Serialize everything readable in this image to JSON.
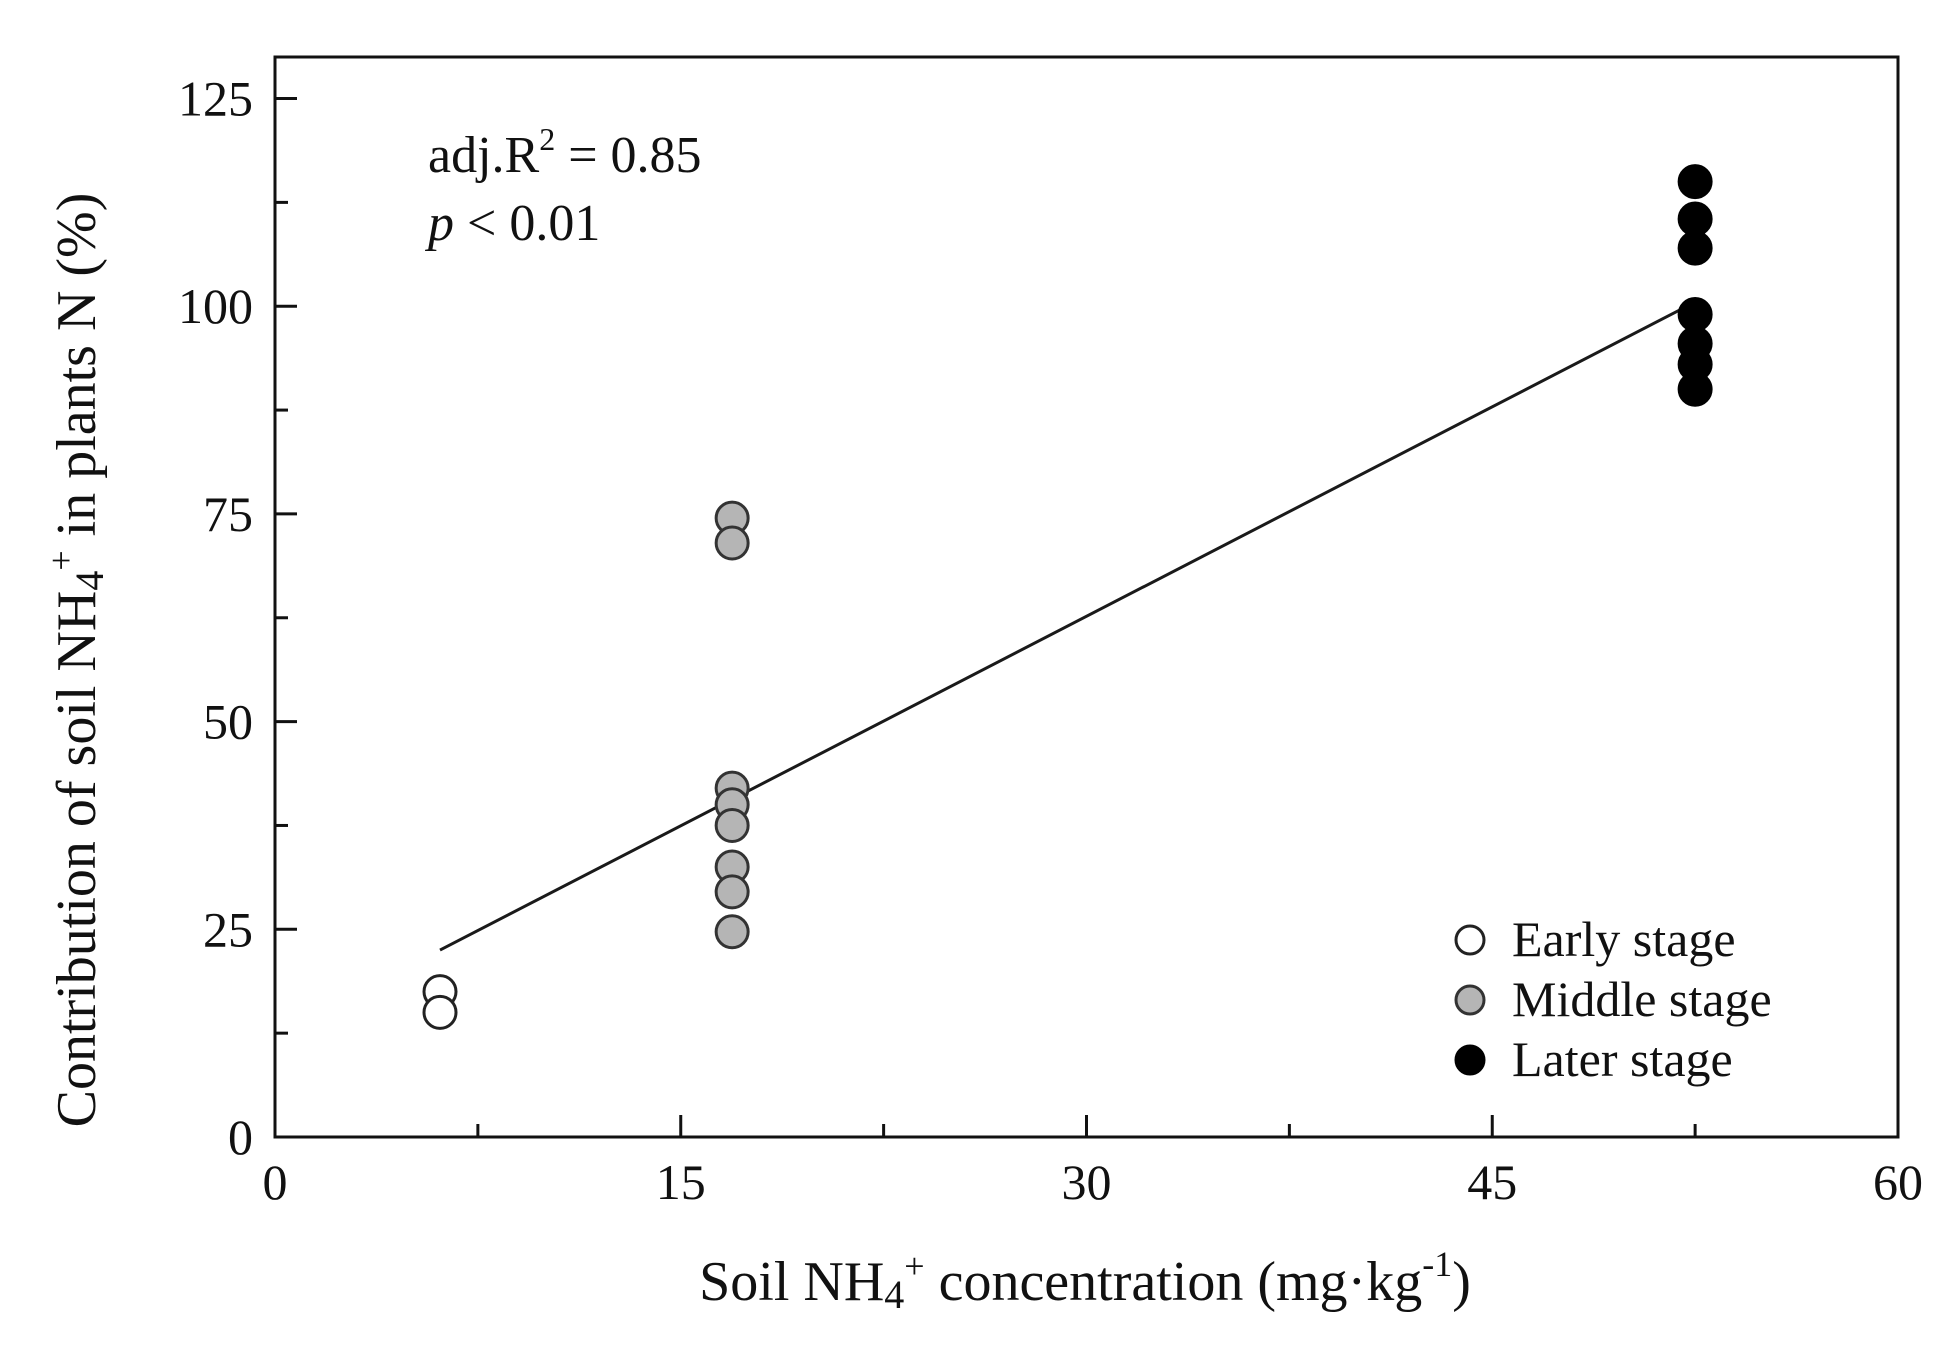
{
  "chart_data": {
    "type": "scatter",
    "xlabel": "Soil NH4+ concentration (mg·kg-1)",
    "xlabel_parts": {
      "pre": "Soil NH",
      "sub": "4",
      "sup": "+",
      "mid": " concentration (mg·kg",
      "sup2": "-1",
      "post": ")"
    },
    "ylabel": "Contribution of soil NH4+ in plants N (%)",
    "ylabel_parts": {
      "pre": "Contribution of soil NH",
      "sub": "4",
      "sup": "+",
      "post": " in plants N (%)"
    },
    "xlim": [
      0,
      60
    ],
    "ylim": [
      0,
      130
    ],
    "x_ticks": [
      0,
      15,
      30,
      45,
      60
    ],
    "x_tick_labels": [
      "0",
      "15",
      "30",
      "45",
      "60"
    ],
    "x_minor_ticks": [
      7.5,
      22.5,
      37.5,
      52.5
    ],
    "y_ticks": [
      0,
      25,
      50,
      75,
      100,
      125
    ],
    "y_tick_labels": [
      "0",
      "25",
      "50",
      "75",
      "100",
      "125"
    ],
    "y_minor_ticks": [
      12.5,
      37.5,
      62.5,
      87.5,
      112.5
    ],
    "grid": false,
    "legend_position": "bottom-right",
    "annotations": {
      "r2_prefix": "adj.R",
      "r2_sup": "2",
      "r2_value": " = 0.85",
      "p_symbol": "p",
      "p_value": " < 0.01"
    },
    "series": [
      {
        "name": "Early stage",
        "fill": "#ffffff",
        "stroke": "#222222",
        "points": [
          [
            6.1,
            17.5
          ],
          [
            6.1,
            15.0
          ]
        ]
      },
      {
        "name": "Middle stage",
        "fill": "#b5b5b5",
        "stroke": "#333333",
        "points": [
          [
            16.9,
            74.5
          ],
          [
            16.9,
            71.5
          ],
          [
            16.9,
            42.0
          ],
          [
            16.9,
            40.0
          ],
          [
            16.9,
            37.5
          ],
          [
            16.9,
            32.5
          ],
          [
            16.9,
            29.5
          ],
          [
            16.9,
            24.7
          ]
        ]
      },
      {
        "name": "Later stage",
        "fill": "#000000",
        "stroke": "#000000",
        "points": [
          [
            52.5,
            115.0
          ],
          [
            52.5,
            110.5
          ],
          [
            52.5,
            107.0
          ],
          [
            52.5,
            99.0
          ],
          [
            52.5,
            95.5
          ],
          [
            52.5,
            93.0
          ],
          [
            52.5,
            90.0
          ]
        ]
      }
    ],
    "regression": {
      "x_start": 6.1,
      "y_start": 22.5,
      "x_end": 52.5,
      "y_end": 100.5
    }
  }
}
